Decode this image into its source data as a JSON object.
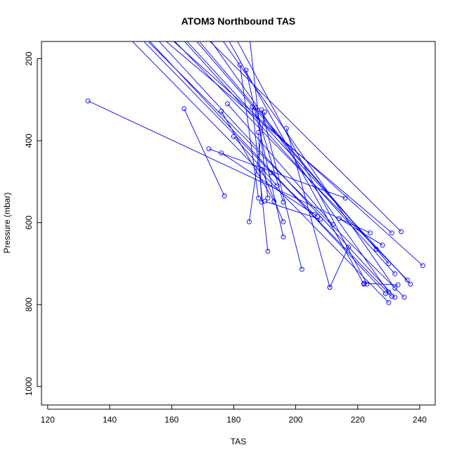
{
  "chart_data": {
    "type": "line",
    "title": "ATOM3 Northbound TAS",
    "xlabel": "TAS",
    "ylabel": "Pressure (mbar)",
    "xlim": [
      118,
      245
    ],
    "ylim": [
      1045,
      158
    ],
    "y_reversed": true,
    "grid": false,
    "x_ticks": [
      120,
      140,
      160,
      180,
      200,
      220,
      240
    ],
    "y_ticks": [
      200,
      400,
      600,
      800,
      1000
    ],
    "series_color": "#0000ff",
    "marker": "open-circle",
    "segments": [
      [
        [
          133,
          303
        ],
        [
          224,
          625
        ]
      ],
      [
        [
          145,
          140
        ],
        [
          230,
          795
        ]
      ],
      [
        [
          150,
          150
        ],
        [
          231,
          780
        ]
      ],
      [
        [
          150,
          140
        ],
        [
          235,
          782
        ]
      ],
      [
        [
          152,
          150
        ],
        [
          229,
          773
        ]
      ],
      [
        [
          155,
          150
        ],
        [
          232,
          782
        ]
      ],
      [
        [
          157,
          150
        ],
        [
          231,
          625
        ]
      ],
      [
        [
          158,
          140
        ],
        [
          241,
          705
        ]
      ],
      [
        [
          160,
          150
        ],
        [
          236,
          740
        ]
      ],
      [
        [
          162,
          140
        ],
        [
          232,
          725
        ]
      ],
      [
        [
          164,
          150
        ],
        [
          237,
          750
        ]
      ],
      [
        [
          166,
          140
        ],
        [
          230,
          700
        ]
      ],
      [
        [
          168,
          150
        ],
        [
          226,
          665
        ]
      ],
      [
        [
          170,
          140
        ],
        [
          234,
          622
        ]
      ],
      [
        [
          172,
          150
        ],
        [
          230,
          770
        ]
      ],
      [
        [
          175,
          140
        ],
        [
          232,
          760
        ]
      ],
      [
        [
          178,
          150
        ],
        [
          222,
          750
        ]
      ],
      [
        [
          180,
          140
        ],
        [
          223,
          750
        ]
      ],
      [
        [
          164,
          322
        ],
        [
          177,
          535
        ]
      ],
      [
        [
          172,
          420
        ],
        [
          216,
          540
        ]
      ],
      [
        [
          176,
          430
        ],
        [
          207,
          585
        ]
      ],
      [
        [
          178,
          310
        ],
        [
          212,
          605
        ]
      ],
      [
        [
          182,
          215
        ],
        [
          188,
          540
        ]
      ],
      [
        [
          184,
          228
        ],
        [
          196,
          635
        ]
      ],
      [
        [
          186,
          318
        ],
        [
          191,
          670
        ]
      ],
      [
        [
          189,
          325
        ],
        [
          202,
          714
        ]
      ],
      [
        [
          190,
          330
        ],
        [
          185,
          598
        ]
      ],
      [
        [
          197,
          370
        ],
        [
          211,
          758
        ]
      ],
      [
        [
          188,
          380
        ],
        [
          189,
          550
        ]
      ],
      [
        [
          192,
          478
        ],
        [
          206,
          580
        ]
      ],
      [
        [
          176,
          328
        ],
        [
          193,
          548
        ]
      ],
      [
        [
          180,
          390
        ],
        [
          194,
          510
        ]
      ],
      [
        [
          187,
          320
        ],
        [
          196,
          550
        ]
      ],
      [
        [
          189,
          470
        ],
        [
          196,
          598
        ]
      ],
      [
        [
          190,
          548
        ],
        [
          208,
          592
        ]
      ],
      [
        [
          185,
          140
        ],
        [
          191,
          540
        ]
      ],
      [
        [
          211,
          758
        ],
        [
          217,
          660
        ]
      ],
      [
        [
          214,
          590
        ],
        [
          228,
          655
        ]
      ],
      [
        [
          222,
          748
        ],
        [
          233,
          752
        ]
      ]
    ]
  }
}
